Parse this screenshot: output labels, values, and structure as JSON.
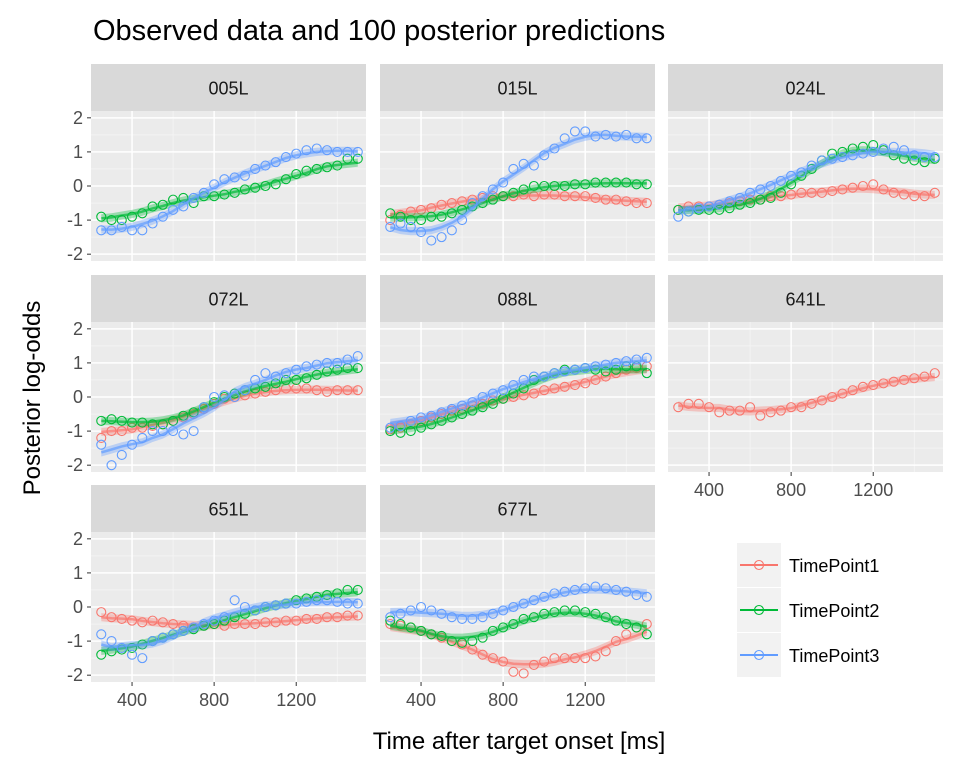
{
  "chart_data": {
    "type": "scatter",
    "title": "Observed data and 100 posterior predictions",
    "xlabel": "Time after target onset [ms]",
    "ylabel": "Posterior log-odds",
    "xlim": [
      200,
      1540
    ],
    "ylim": [
      -2.2,
      2.2
    ],
    "xticks": [
      400,
      800,
      1200
    ],
    "xtick_labels": [
      "400",
      "800",
      "1200"
    ],
    "yticks": [
      -2,
      -1,
      0,
      1,
      2
    ],
    "ytick_labels": [
      "-2",
      "-1",
      "0",
      "1",
      "2"
    ],
    "grid": true,
    "legend_position": "bottom-right",
    "x": [
      250,
      300,
      350,
      400,
      450,
      500,
      550,
      600,
      650,
      700,
      750,
      800,
      850,
      900,
      950,
      1000,
      1050,
      1100,
      1150,
      1200,
      1250,
      1300,
      1350,
      1400,
      1450,
      1500
    ],
    "series_style": [
      {
        "name": "TimePoint1",
        "color": "#F8766D"
      },
      {
        "name": "TimePoint2",
        "color": "#00BA38"
      },
      {
        "name": "TimePoint3",
        "color": "#619CFF"
      }
    ],
    "panels": [
      {
        "id": "005L",
        "series": {
          "TimePoint2": [
            -0.9,
            -1.0,
            -1.0,
            -0.9,
            -0.8,
            -0.6,
            -0.55,
            -0.4,
            -0.35,
            -0.5,
            -0.3,
            -0.3,
            -0.25,
            -0.2,
            -0.1,
            -0.05,
            0.0,
            0.05,
            0.2,
            0.35,
            0.45,
            0.5,
            0.55,
            0.6,
            0.8,
            0.8
          ],
          "TimePoint3": [
            -1.3,
            -1.3,
            -1.2,
            -1.3,
            -1.3,
            -1.1,
            -0.9,
            -0.7,
            -0.6,
            -0.35,
            -0.2,
            0.05,
            0.2,
            0.25,
            0.3,
            0.5,
            0.6,
            0.7,
            0.85,
            0.95,
            1.05,
            1.1,
            1.05,
            1.0,
            1.0,
            1.0
          ]
        }
      },
      {
        "id": "015L",
        "series": {
          "TimePoint1": [
            -1.0,
            -0.85,
            -0.75,
            -0.7,
            -0.65,
            -0.55,
            -0.5,
            -0.45,
            -0.4,
            -0.35,
            -0.3,
            -0.3,
            -0.3,
            -0.25,
            -0.3,
            -0.25,
            -0.25,
            -0.3,
            -0.3,
            -0.3,
            -0.35,
            -0.4,
            -0.4,
            -0.45,
            -0.5,
            -0.5
          ],
          "TimePoint2": [
            -0.8,
            -0.9,
            -1.0,
            -1.0,
            -0.9,
            -0.9,
            -0.8,
            -0.7,
            -0.6,
            -0.5,
            -0.4,
            -0.3,
            -0.2,
            -0.1,
            0.0,
            0.0,
            0.0,
            0.0,
            0.05,
            0.05,
            0.1,
            0.1,
            0.1,
            0.1,
            0.05,
            0.05
          ],
          "TimePoint3": [
            -1.2,
            -1.1,
            -1.2,
            -1.35,
            -1.6,
            -1.5,
            -1.3,
            -1.0,
            -0.5,
            -0.3,
            -0.1,
            0.1,
            0.5,
            0.65,
            0.6,
            0.9,
            1.1,
            1.4,
            1.6,
            1.6,
            1.45,
            1.5,
            1.45,
            1.5,
            1.4,
            1.4
          ]
        }
      },
      {
        "id": "024L",
        "series": {
          "TimePoint1": [
            -0.7,
            -0.6,
            -0.6,
            -0.6,
            -0.55,
            -0.5,
            -0.45,
            -0.4,
            -0.4,
            -0.3,
            -0.3,
            -0.25,
            -0.2,
            -0.2,
            -0.2,
            -0.15,
            -0.1,
            -0.05,
            0.0,
            0.05,
            -0.1,
            -0.2,
            -0.25,
            -0.3,
            -0.3,
            -0.2
          ],
          "TimePoint2": [
            -0.7,
            -0.75,
            -0.7,
            -0.7,
            -0.7,
            -0.65,
            -0.55,
            -0.5,
            -0.4,
            -0.35,
            -0.2,
            0.05,
            0.3,
            0.5,
            0.75,
            0.95,
            1.0,
            1.1,
            1.15,
            1.2,
            1.05,
            0.9,
            0.8,
            0.75,
            0.7,
            0.8
          ],
          "TimePoint3": [
            -0.9,
            -0.75,
            -0.65,
            -0.6,
            -0.55,
            -0.45,
            -0.35,
            -0.2,
            -0.1,
            0.0,
            0.15,
            0.3,
            0.4,
            0.6,
            0.75,
            0.8,
            0.85,
            0.9,
            0.95,
            1.0,
            1.1,
            1.15,
            1.05,
            0.9,
            0.85,
            0.85
          ]
        }
      },
      {
        "id": "072L",
        "series": {
          "TimePoint1": [
            -1.2,
            -1.0,
            -1.0,
            -0.9,
            -0.9,
            -0.85,
            -0.8,
            -0.7,
            -0.6,
            -0.5,
            -0.35,
            -0.2,
            -0.05,
            0.0,
            0.05,
            0.1,
            0.15,
            0.2,
            0.25,
            0.25,
            0.25,
            0.2,
            0.15,
            0.2,
            0.2,
            0.2
          ],
          "TimePoint2": [
            -0.7,
            -0.65,
            -0.7,
            -0.75,
            -0.75,
            -0.8,
            -0.8,
            -0.7,
            -0.55,
            -0.45,
            -0.3,
            -0.15,
            0.0,
            0.1,
            0.2,
            0.25,
            0.3,
            0.4,
            0.5,
            0.5,
            0.55,
            0.65,
            0.75,
            0.8,
            0.85,
            0.85
          ],
          "TimePoint3": [
            -1.4,
            -2.0,
            -1.7,
            -1.4,
            -1.2,
            -1.0,
            -1.0,
            -1.0,
            -1.1,
            -1.0,
            -0.3,
            0.0,
            0.05,
            0.0,
            0.2,
            0.5,
            0.7,
            0.6,
            0.7,
            0.8,
            0.9,
            0.95,
            1.0,
            1.0,
            1.1,
            1.2
          ]
        }
      },
      {
        "id": "088L",
        "series": {
          "TimePoint1": [
            -0.95,
            -0.9,
            -0.8,
            -0.7,
            -0.6,
            -0.5,
            -0.4,
            -0.35,
            -0.25,
            -0.2,
            -0.1,
            -0.05,
            0.0,
            0.05,
            0.1,
            0.2,
            0.25,
            0.3,
            0.35,
            0.4,
            0.5,
            0.6,
            0.7,
            0.8,
            0.85,
            0.9
          ],
          "TimePoint2": [
            -1.0,
            -1.05,
            -1.0,
            -0.9,
            -0.8,
            -0.7,
            -0.6,
            -0.5,
            -0.4,
            -0.3,
            -0.2,
            -0.05,
            0.1,
            0.25,
            0.5,
            0.6,
            0.7,
            0.8,
            0.8,
            0.85,
            0.8,
            0.75,
            0.8,
            0.9,
            0.9,
            0.7
          ],
          "TimePoint3": [
            -0.9,
            -0.85,
            -0.7,
            -0.6,
            -0.55,
            -0.45,
            -0.35,
            -0.25,
            -0.15,
            0.0,
            0.1,
            0.2,
            0.35,
            0.5,
            0.6,
            0.6,
            0.7,
            0.75,
            0.8,
            0.85,
            0.9,
            0.95,
            1.0,
            1.05,
            1.1,
            1.15
          ]
        }
      },
      {
        "id": "641L",
        "series": {
          "TimePoint1": [
            -0.3,
            -0.2,
            -0.2,
            -0.3,
            -0.45,
            -0.4,
            -0.4,
            -0.3,
            -0.55,
            -0.45,
            -0.4,
            -0.3,
            -0.3,
            -0.2,
            -0.1,
            0.0,
            0.1,
            0.2,
            0.3,
            0.35,
            0.4,
            0.45,
            0.5,
            0.55,
            0.6,
            0.7
          ]
        }
      },
      {
        "id": "651L",
        "series": {
          "TimePoint1": [
            -0.15,
            -0.3,
            -0.35,
            -0.4,
            -0.45,
            -0.4,
            -0.45,
            -0.5,
            -0.55,
            -0.6,
            -0.55,
            -0.5,
            -0.55,
            -0.5,
            -0.5,
            -0.5,
            -0.45,
            -0.45,
            -0.4,
            -0.4,
            -0.35,
            -0.35,
            -0.3,
            -0.3,
            -0.25,
            -0.25
          ],
          "TimePoint2": [
            -1.4,
            -1.3,
            -1.25,
            -1.2,
            -1.1,
            -1.0,
            -0.9,
            -0.8,
            -0.7,
            -0.65,
            -0.55,
            -0.5,
            -0.4,
            -0.3,
            -0.2,
            -0.1,
            0.0,
            0.05,
            0.1,
            0.2,
            0.25,
            0.3,
            0.35,
            0.4,
            0.5,
            0.5
          ],
          "TimePoint3": [
            -0.8,
            -1.0,
            -1.2,
            -1.4,
            -1.5,
            -1.0,
            -0.9,
            -0.8,
            -0.7,
            -0.6,
            -0.5,
            -0.4,
            -0.3,
            0.2,
            0.0,
            -0.1,
            0.0,
            0.05,
            0.1,
            0.1,
            0.15,
            0.2,
            0.2,
            0.15,
            0.1,
            0.1
          ]
        }
      },
      {
        "id": "677L",
        "series": {
          "TimePoint1": [
            -0.5,
            -0.55,
            -0.6,
            -0.7,
            -0.8,
            -0.9,
            -1.0,
            -1.1,
            -1.25,
            -1.4,
            -1.5,
            -1.6,
            -1.9,
            -1.95,
            -1.7,
            -1.6,
            -1.5,
            -1.5,
            -1.5,
            -1.5,
            -1.45,
            -1.3,
            -1.0,
            -0.8,
            -0.6,
            -0.5
          ],
          "TimePoint2": [
            -0.4,
            -0.5,
            -0.6,
            -0.7,
            -0.8,
            -0.85,
            -1.0,
            -1.05,
            -1.0,
            -0.9,
            -0.7,
            -0.6,
            -0.5,
            -0.35,
            -0.3,
            -0.2,
            -0.15,
            -0.1,
            -0.1,
            -0.15,
            -0.2,
            -0.3,
            -0.4,
            -0.5,
            -0.6,
            -0.8
          ],
          "TimePoint3": [
            -0.3,
            -0.2,
            -0.1,
            0.0,
            -0.1,
            -0.2,
            -0.3,
            -0.35,
            -0.35,
            -0.3,
            -0.2,
            -0.1,
            0.0,
            0.1,
            0.2,
            0.3,
            0.4,
            0.45,
            0.5,
            0.55,
            0.6,
            0.55,
            0.5,
            0.45,
            0.35,
            0.3
          ]
        }
      }
    ]
  }
}
